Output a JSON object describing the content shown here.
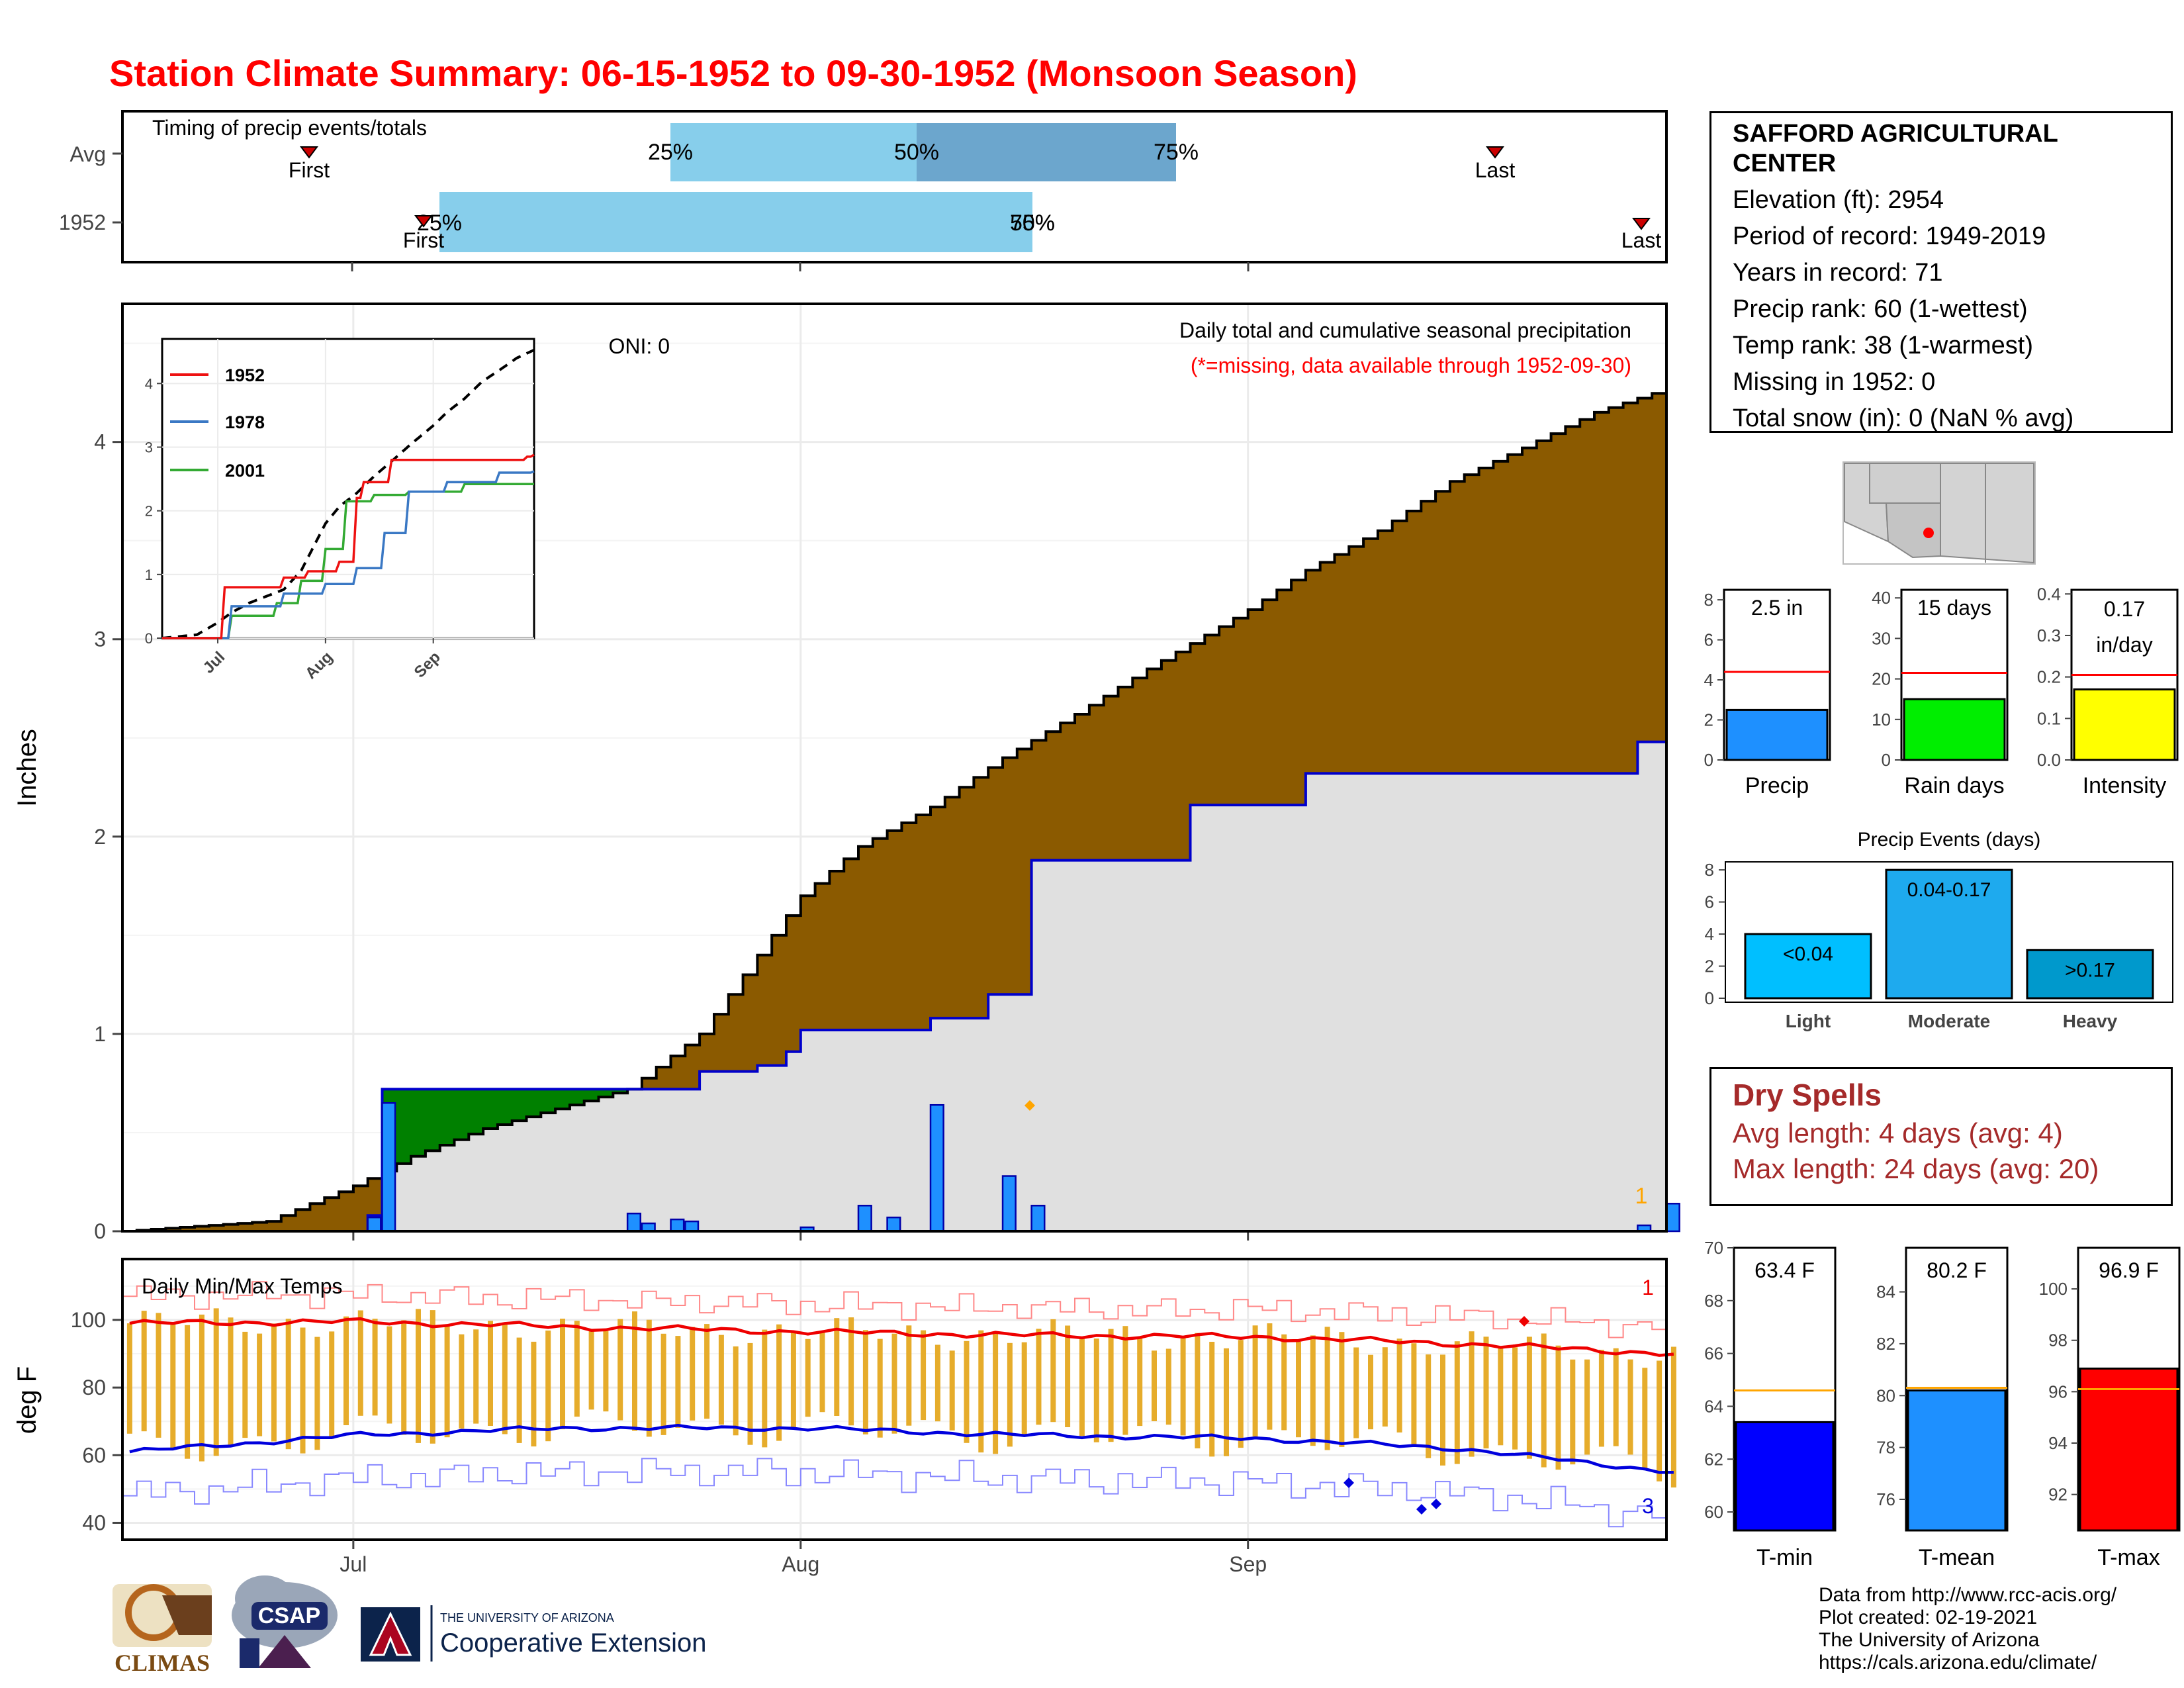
{
  "title": "Station Climate Summary: 06-15-1952 to 09-30-1952 (Monsoon Season)",
  "station": {
    "name_line1": "SAFFORD AGRICULTURAL",
    "name_line2": "CENTER",
    "elevation": "Elevation (ft): 2954",
    "period": "Period of record: 1949-2019",
    "years": "Years in record: 71",
    "precip_rank": "Precip rank: 60 (1-wettest)",
    "temp_rank": "Temp rank: 38 (1-warmest)",
    "missing": "Missing in 1952: 0",
    "snow": "Total snow (in): 0 (NaN % avg)"
  },
  "timing": {
    "title": "Timing of precip events/totals",
    "rows": [
      "Avg",
      "1952"
    ],
    "avg_marks": {
      "p25": "25%",
      "p50": "50%",
      "p75": "75%",
      "first": "First",
      "last": "Last"
    },
    "y1952_marks": {
      "p25": "25%",
      "p50": "50%",
      "p75": "75%",
      "first": "First",
      "last": "Last"
    },
    "x_ticks": [
      "Jul",
      "Aug",
      "Sep"
    ]
  },
  "precip_panel": {
    "oni": "ONI: 0",
    "subtitle": "Daily total and cumulative seasonal precipitation",
    "note": "(*=missing, data available through 1952-09-30)",
    "ylabel": "Inches",
    "yticks": [
      "0",
      "1",
      "2",
      "3",
      "4"
    ],
    "xticks": [
      "Jul",
      "Aug",
      "Sep"
    ],
    "rank_marker": "1"
  },
  "inset": {
    "legend": [
      "1952",
      "1978",
      "2001"
    ],
    "yticks": [
      "0",
      "1",
      "2",
      "3",
      "4"
    ],
    "xticks": [
      "Jul",
      "Aug",
      "Sep"
    ]
  },
  "temp_panel": {
    "title": "Daily Min/Max Temps",
    "ylabel": "deg F",
    "yticks": [
      "40",
      "60",
      "80",
      "100"
    ],
    "xticks": [
      "Jul",
      "Aug",
      "Sep"
    ],
    "max_count": "1",
    "min_count": "3"
  },
  "small_bars": {
    "precip": {
      "label": "Precip",
      "value_text": "2.5 in",
      "value": 2.5,
      "avg": 4.4,
      "yticks": [
        "0",
        "2",
        "4",
        "6",
        "8"
      ],
      "ymax": 8.5
    },
    "raindays": {
      "label": "Rain days",
      "value_text": "15 days",
      "value": 15,
      "avg": 21.5,
      "yticks": [
        "0",
        "10",
        "20",
        "30",
        "40"
      ],
      "ymax": 42
    },
    "intensity": {
      "label": "Intensity",
      "value_text1": "0.17",
      "value_text2": "in/day",
      "value": 0.17,
      "avg": 0.205,
      "yticks": [
        "0.0",
        "0.1",
        "0.2",
        "0.3",
        "0.4"
      ],
      "ymax": 0.41
    }
  },
  "precip_events": {
    "title": "Precip Events (days)",
    "yticks": [
      "0",
      "2",
      "4",
      "6",
      "8"
    ],
    "categories": [
      "Light",
      "Moderate",
      "Heavy"
    ],
    "bar_labels": [
      "<0.04",
      "0.04-0.17",
      ">0.17"
    ],
    "values": [
      4,
      8,
      3
    ]
  },
  "dry_spells": {
    "title": "Dry Spells",
    "avg": "Avg length: 4 days (avg: 4)",
    "max": "Max length: 24 days (avg: 20)"
  },
  "temp_bars": {
    "tmin": {
      "label": "T-min",
      "value_text": "63.4 F",
      "value": 63.4,
      "avg": 64.6,
      "yticks": [
        "60",
        "62",
        "64",
        "66",
        "68",
        "70"
      ]
    },
    "tmean": {
      "label": "T-mean",
      "value_text": "80.2 F",
      "value": 80.2,
      "avg": 80.3,
      "yticks": [
        "76",
        "78",
        "80",
        "82",
        "84"
      ]
    },
    "tmax": {
      "label": "T-max",
      "value_text": "96.9 F",
      "value": 96.9,
      "avg": 96.1,
      "yticks": [
        "92",
        "94",
        "96",
        "98",
        "100"
      ]
    }
  },
  "credits": {
    "line1": "Data from http://www.rcc-acis.org/",
    "line2": "Plot created: 02-19-2021",
    "line3": "The University of Arizona",
    "line4": "https://cals.arizona.edu/climate/"
  },
  "logos": {
    "climas": "CLIMAS",
    "csap": "CSAP",
    "ua_top": "THE UNIVERSITY OF ARIZONA",
    "ua_bottom": "Cooperative Extension"
  },
  "colors": {
    "title": "#ff0000",
    "cum_fill": "#8b5a00",
    "above_avg_fill": "#008000",
    "avg_area": "#e0e0e0",
    "daily_bar": "#1e90ff",
    "temp_bar": "#e6ac2b",
    "dry_spell_text": "#a52a2a"
  },
  "chart_data": [
    {
      "type": "area",
      "title": "Daily total and cumulative seasonal precipitation",
      "ylabel": "Inches",
      "ylim": [
        0,
        4.7
      ],
      "x_start": "1952-06-15",
      "x_end": "1952-09-30",
      "series": [
        {
          "name": "1952",
          "x": [
            "1952-06-15",
            "1952-07-01",
            "1952-07-02",
            "1952-07-03",
            "1952-07-20",
            "1952-07-25",
            "1952-07-29",
            "1952-07-31",
            "1952-08-01",
            "1952-08-10",
            "1952-08-14",
            "1952-08-17",
            "1952-08-28",
            "1952-09-05",
            "1952-09-28",
            "1952-09-30"
          ],
          "values": [
            0,
            0,
            0.08,
            0.72,
            0.72,
            0.81,
            0.84,
            0.91,
            1.02,
            1.08,
            1.2,
            1.88,
            2.16,
            2.32,
            2.48,
            2.5
          ]
        },
        {
          "name": "avg",
          "x": [
            "1952-06-15",
            "1952-06-25",
            "1952-07-01",
            "1952-07-05",
            "1952-07-10",
            "1952-07-15",
            "1952-07-20",
            "1952-07-25",
            "1952-08-01",
            "1952-08-05",
            "1952-08-10",
            "1952-08-15",
            "1952-08-20",
            "1952-08-25",
            "1952-09-01",
            "1952-09-05",
            "1952-09-10",
            "1952-09-15",
            "1952-09-20",
            "1952-09-25",
            "1952-09-30"
          ],
          "values": [
            0,
            0.05,
            0.23,
            0.38,
            0.52,
            0.62,
            0.72,
            1.0,
            1.7,
            1.95,
            2.15,
            2.4,
            2.62,
            2.85,
            3.15,
            3.35,
            3.55,
            3.8,
            3.97,
            4.15,
            4.27
          ]
        }
      ]
    },
    {
      "type": "bar",
      "title": "Daily precipitation",
      "x": [
        "1952-07-02",
        "1952-07-03",
        "1952-07-20",
        "1952-07-21",
        "1952-07-23",
        "1952-07-24",
        "1952-07-25",
        "1952-08-01",
        "1952-08-05",
        "1952-08-07",
        "1952-08-10",
        "1952-08-15",
        "1952-08-17",
        "1952-09-28",
        "1952-09-30"
      ],
      "values": [
        0.07,
        0.65,
        0.09,
        0.04,
        0.06,
        0.05,
        0.0,
        0.02,
        0.13,
        0.07,
        0.64,
        0.28,
        0.13,
        0.03,
        0.14
      ]
    },
    {
      "type": "line",
      "title": "Daily Min/Max Temps",
      "ylabel": "deg F",
      "ylim": [
        35,
        118
      ],
      "x_start": "1952-06-15",
      "x_end": "1952-09-30",
      "series": [
        {
          "name": "avg max",
          "x": [
            "1952-06-15",
            "1952-07-01",
            "1952-07-15",
            "1952-08-01",
            "1952-08-15",
            "1952-09-01",
            "1952-09-15",
            "1952-09-30"
          ],
          "values": [
            99,
            99.5,
            98,
            96.5,
            95.5,
            95,
            93,
            90
          ]
        },
        {
          "name": "avg min",
          "x": [
            "1952-06-15",
            "1952-07-01",
            "1952-07-15",
            "1952-08-01",
            "1952-08-15",
            "1952-09-01",
            "1952-09-15",
            "1952-09-30"
          ],
          "values": [
            61,
            66,
            68,
            68,
            66,
            65,
            62,
            55
          ]
        }
      ]
    },
    {
      "type": "bar",
      "title": "Precip Events (days)",
      "categories": [
        "Light",
        "Moderate",
        "Heavy"
      ],
      "values": [
        4,
        8,
        3
      ],
      "ylim": [
        0,
        8.5
      ]
    }
  ]
}
